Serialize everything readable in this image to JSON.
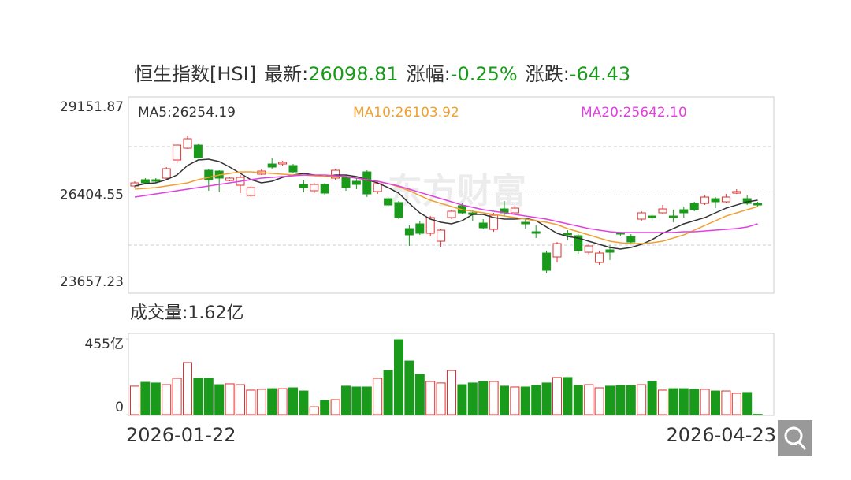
{
  "chart_data": [
    {
      "type": "candlestick",
      "header": [
        {
          "text": "恒生指数[HSI]",
          "color": "#333333"
        },
        {
          "text": "最新:",
          "color": "#333333"
        },
        {
          "text": "26098.81",
          "color": "#1a9a1a"
        },
        {
          "text": "涨幅:",
          "color": "#333333"
        },
        {
          "text": "-0.25%",
          "color": "#1a9a1a"
        },
        {
          "text": "涨跌:",
          "color": "#333333"
        },
        {
          "text": "-64.43",
          "color": "#1a9a1a"
        }
      ],
      "watermark": "东方财富",
      "up_color": "#e03030",
      "down_color": "#1a9a1a",
      "ylim": [
        23657.23,
        29151.87
      ],
      "yticks": [
        23657.23,
        26404.55,
        29151.87
      ],
      "grid": true,
      "open": [
        26658,
        26835,
        26835,
        26879,
        27386,
        27717,
        27805,
        27099,
        27077,
        26813,
        26680,
        26393,
        26990,
        27276,
        27276,
        27232,
        26702,
        26526,
        26702,
        26879,
        26901,
        26791,
        27055,
        26504,
        26305,
        26195,
        25466,
        25599,
        25334,
        25113,
        25775,
        26106,
        25908,
        25621,
        25444,
        26018,
        25908,
        25643,
        25378,
        24782,
        24672,
        25334,
        25268,
        24804,
        24518,
        24871,
        25334,
        25245,
        25731,
        25819,
        25908,
        25819,
        25996,
        26172,
        26172,
        26305,
        26217,
        26459,
        26305,
        26172
      ],
      "high": [
        26791,
        26879,
        26879,
        27188,
        27827,
        28070,
        27827,
        27144,
        27099,
        26901,
        26967,
        26658,
        27121,
        27430,
        27364,
        27276,
        26835,
        26746,
        26746,
        27144,
        26967,
        26879,
        27099,
        26791,
        26349,
        26239,
        25555,
        25687,
        25819,
        25466,
        25996,
        26172,
        25996,
        25731,
        25908,
        26239,
        26128,
        25775,
        25555,
        24849,
        25091,
        25422,
        25312,
        25047,
        24849,
        25003,
        25378,
        25312,
        25952,
        25863,
        26128,
        25996,
        26084,
        26217,
        26393,
        26349,
        26437,
        26570,
        26393,
        26217
      ],
      "low": [
        26614,
        26702,
        26746,
        26835,
        27298,
        27695,
        27430,
        26526,
        26481,
        26791,
        26459,
        26349,
        26967,
        27144,
        27232,
        27011,
        26481,
        26459,
        26415,
        26835,
        26526,
        26570,
        26349,
        26437,
        26084,
        25731,
        24981,
        25290,
        25245,
        24959,
        25731,
        25863,
        25687,
        25444,
        25378,
        25819,
        25863,
        25466,
        25201,
        24209,
        24518,
        25135,
        24760,
        24738,
        24452,
        24584,
        25268,
        25025,
        25687,
        25687,
        25863,
        25643,
        25775,
        25952,
        26128,
        26040,
        26172,
        26437,
        26128,
        26084
      ],
      "close": [
        26746,
        26746,
        26791,
        27144,
        27805,
        27982,
        27452,
        26835,
        26879,
        26879,
        26901,
        26614,
        27077,
        27188,
        27320,
        27055,
        26614,
        26702,
        26459,
        27099,
        26614,
        26702,
        26437,
        26724,
        26128,
        25775,
        25290,
        25334,
        25775,
        25422,
        25952,
        25908,
        25863,
        25488,
        25841,
        25908,
        26040,
        25599,
        25334,
        24297,
        25047,
        25290,
        24849,
        24981,
        24782,
        24804,
        25312,
        25091,
        25908,
        25775,
        26018,
        25775,
        25908,
        25996,
        26349,
        26217,
        26349,
        26504,
        26172,
        26128
      ],
      "series": [
        {
          "name": "MA5:26254.19",
          "color": "#333333",
          "values": [
            26658,
            26724,
            26746,
            26835,
            26967,
            27232,
            27386,
            27408,
            27342,
            27188,
            27011,
            26835,
            26746,
            26791,
            26901,
            26967,
            27011,
            26967,
            26923,
            26967,
            26967,
            26923,
            26835,
            26746,
            26614,
            26459,
            26172,
            25908,
            25731,
            25643,
            25599,
            25687,
            25863,
            25863,
            25775,
            25731,
            25731,
            25753,
            25687,
            25510,
            25334,
            25245,
            25201,
            25113,
            25025,
            24937,
            24893,
            24937,
            25025,
            25157,
            25334,
            25466,
            25599,
            25687,
            25775,
            25908,
            26040,
            26128,
            26217,
            26261
          ]
        },
        {
          "name": "MA10:26103.92",
          "color": "#f0a030",
          "values": [
            26570,
            26592,
            26614,
            26658,
            26702,
            26746,
            26835,
            26901,
            26967,
            27011,
            27055,
            27055,
            27033,
            27011,
            26989,
            26967,
            26967,
            26945,
            26923,
            26923,
            26923,
            26879,
            26835,
            26791,
            26724,
            26636,
            26526,
            26393,
            26261,
            26172,
            26084,
            25996,
            25952,
            25908,
            25863,
            25819,
            25775,
            25731,
            25687,
            25643,
            25577,
            25466,
            25378,
            25290,
            25201,
            25113,
            25069,
            25047,
            25047,
            25069,
            25113,
            25201,
            25290,
            25422,
            25555,
            25687,
            25819,
            25908,
            25996,
            26084
          ]
        },
        {
          "name": "MA20:25642.10",
          "color": "#e040e0",
          "values": [
            26349,
            26393,
            26437,
            26481,
            26526,
            26570,
            26614,
            26658,
            26702,
            26746,
            26791,
            26835,
            26879,
            26901,
            26923,
            26945,
            26967,
            26967,
            26967,
            26945,
            26923,
            26879,
            26835,
            26791,
            26724,
            26658,
            26570,
            26481,
            26393,
            26305,
            26217,
            26128,
            26062,
            25996,
            25952,
            25908,
            25863,
            25819,
            25775,
            25731,
            25665,
            25599,
            25533,
            25466,
            25422,
            25378,
            25356,
            25356,
            25356,
            25356,
            25356,
            25356,
            25378,
            25378,
            25400,
            25422,
            25444,
            25466,
            25510,
            25599
          ]
        }
      ]
    },
    {
      "type": "bar",
      "title": "成交量:1.62亿",
      "ylim": [
        0,
        455
      ],
      "yticks": [
        0,
        {
          "value": 455,
          "label": "455亿"
        }
      ],
      "categories": [
        "2026-01-22",
        null,
        null,
        null,
        null,
        null,
        null,
        null,
        null,
        null,
        null,
        null,
        null,
        null,
        null,
        null,
        null,
        null,
        null,
        null,
        null,
        null,
        null,
        null,
        null,
        null,
        null,
        null,
        null,
        null,
        null,
        null,
        null,
        null,
        null,
        null,
        null,
        null,
        null,
        null,
        null,
        null,
        null,
        null,
        null,
        null,
        null,
        null,
        null,
        null,
        null,
        null,
        null,
        null,
        null,
        null,
        null,
        null,
        null,
        "2026-04-23"
      ],
      "values": [
        171,
        194,
        190,
        180,
        218,
        313,
        218,
        218,
        180,
        185,
        180,
        147,
        152,
        156,
        156,
        161,
        142,
        47,
        85,
        90,
        171,
        166,
        166,
        218,
        265,
        450,
        322,
        242,
        199,
        190,
        265,
        180,
        190,
        199,
        199,
        171,
        166,
        166,
        175,
        190,
        223,
        223,
        175,
        180,
        161,
        171,
        175,
        175,
        180,
        199,
        147,
        156,
        156,
        152,
        152,
        142,
        142,
        128,
        133,
        1.62
      ]
    }
  ]
}
